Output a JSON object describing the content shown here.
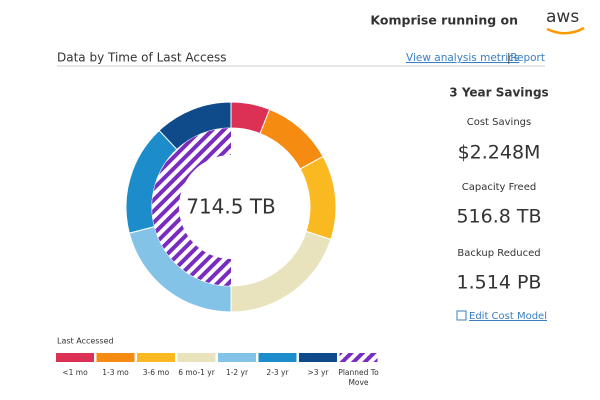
{
  "header": {
    "text": "Komprise running on",
    "logo": "aws"
  },
  "links": {
    "metrics": "View analysis metrics",
    "separator": "|",
    "report": "Report"
  },
  "chart_data": {
    "type": "donut",
    "title": "Data by Time of Last Access",
    "center_label": "714.5 TB",
    "legend_title": "Last Accessed",
    "categories": [
      "<1 mo",
      "1-3 mo",
      "3-6 mo",
      "6 mo-1 yr",
      "1-2 yr",
      "2-3 yr",
      ">3 yr"
    ],
    "values": [
      6,
      11,
      13,
      20,
      21,
      17,
      12
    ],
    "colors": [
      "#dc3155",
      "#f68b12",
      "#fbb921",
      "#e9e3bd",
      "#84c3e8",
      "#1d8ccb",
      "#0f4b8a"
    ],
    "inner": {
      "name": "Planned To Move",
      "value": 50,
      "color": "#7a2cc0"
    }
  },
  "savings": {
    "title": "3 Year Savings",
    "items": [
      {
        "label": "Cost Savings",
        "value": "$2.248M"
      },
      {
        "label": "Capacity Freed",
        "value": "516.8 TB"
      },
      {
        "label": "Backup Reduced",
        "value": "1.514 PB"
      }
    ],
    "edit": "Edit Cost Model"
  }
}
